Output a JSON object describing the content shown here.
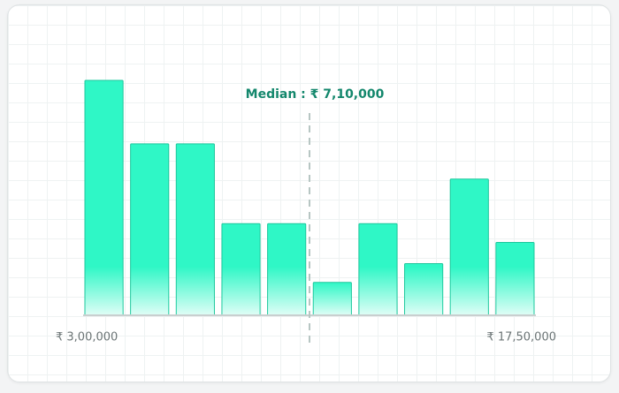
{
  "chart_data": {
    "type": "bar",
    "values": [
      100,
      73,
      73,
      39,
      39,
      14,
      39,
      22,
      58,
      31
    ],
    "ylim": [
      0,
      100
    ],
    "color": "#2ff7c6",
    "edge_color": "#1cc79c",
    "min_label": "₹ 3,00,000",
    "max_label": "₹ 17,50,000",
    "median_label": "Median : ₹ 7,10,000"
  }
}
